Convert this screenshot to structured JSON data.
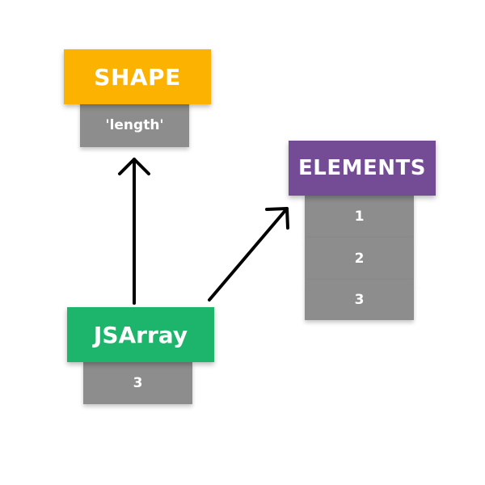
{
  "colors": {
    "shape": "#fbb200",
    "elements": "#744c95",
    "jsarray": "#1db46c",
    "cell": "#8c8d8c",
    "arrow": "#000000"
  },
  "shape": {
    "title": "SHAPE",
    "cell": "'length'"
  },
  "elements": {
    "title": "ELEMENTS",
    "cells": [
      "1",
      "2",
      "3"
    ]
  },
  "jsarray": {
    "title": "JSArray",
    "cell": "3"
  }
}
